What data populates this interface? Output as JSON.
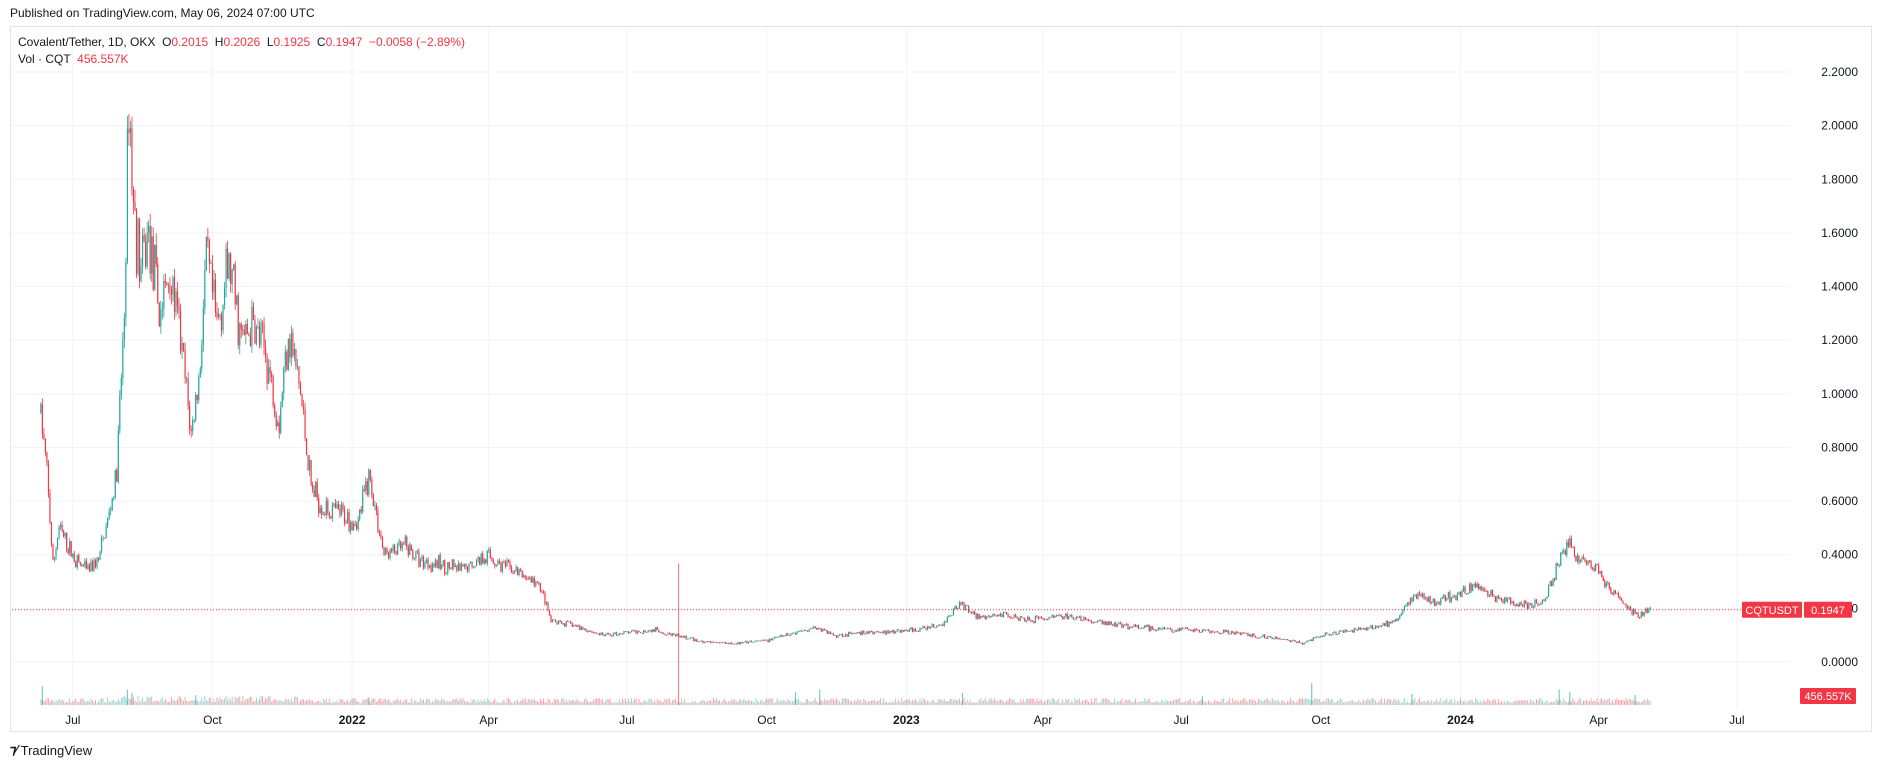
{
  "header": {
    "published": "Published on TradingView.com, May 06, 2024 07:00 UTC"
  },
  "legend": {
    "symbol": "Covalent/Tether, 1D, OKX",
    "open_label": "O",
    "open": "0.2015",
    "high_label": "H",
    "high": "0.2026",
    "low_label": "L",
    "low": "0.1925",
    "close_label": "C",
    "close": "0.1947",
    "change": "−0.0058 (−2.89%)",
    "vol_label": "Vol · CQT",
    "vol_value": "456.557K"
  },
  "footer": {
    "logo_text": "TradingView"
  },
  "colors": {
    "up": "#26a69a",
    "down": "#f23645",
    "grid": "#f0f3fa",
    "axis_text": "#131722"
  },
  "chart_data": {
    "type": "candlestick",
    "symbol_tag": "CQTUSDT",
    "last_price": 0.1947,
    "last_price_label": "0.1947",
    "last_volume_label": "456.557K",
    "y_ticks": [
      "2.2000",
      "2.0000",
      "1.8000",
      "1.6000",
      "1.4000",
      "1.2000",
      "1.0000",
      "0.8000",
      "0.6000",
      "0.4000",
      "0.2000",
      "0.0000"
    ],
    "y_tick_values": [
      2.2,
      2.0,
      1.8,
      1.6,
      1.4,
      1.2,
      1.0,
      0.8,
      0.6,
      0.4,
      0.2,
      0.0
    ],
    "ylim": [
      0,
      2.2
    ],
    "x_ticks": [
      {
        "label": "Jul",
        "date": "2021-07-01",
        "bold": false
      },
      {
        "label": "Oct",
        "date": "2021-10-01",
        "bold": false
      },
      {
        "label": "2022",
        "date": "2022-01-01",
        "bold": true
      },
      {
        "label": "Apr",
        "date": "2022-04-01",
        "bold": false
      },
      {
        "label": "Jul",
        "date": "2022-07-01",
        "bold": false
      },
      {
        "label": "Oct",
        "date": "2022-10-01",
        "bold": false
      },
      {
        "label": "2023",
        "date": "2023-01-01",
        "bold": true
      },
      {
        "label": "Apr",
        "date": "2023-04-01",
        "bold": false
      },
      {
        "label": "Jul",
        "date": "2023-07-01",
        "bold": false
      },
      {
        "label": "Oct",
        "date": "2023-10-01",
        "bold": false
      },
      {
        "label": "2024",
        "date": "2024-01-01",
        "bold": true
      },
      {
        "label": "Apr",
        "date": "2024-04-01",
        "bold": false
      },
      {
        "label": "Jul",
        "date": "2024-07-01",
        "bold": false
      }
    ],
    "x_range": [
      "2021-05-22",
      "2024-08-05"
    ],
    "price_path": [
      {
        "date": "2021-06-10",
        "value": 0.93
      },
      {
        "date": "2021-06-14",
        "value": 0.7
      },
      {
        "date": "2021-06-18",
        "value": 0.36
      },
      {
        "date": "2021-06-22",
        "value": 0.5
      },
      {
        "date": "2021-06-27",
        "value": 0.44
      },
      {
        "date": "2021-07-03",
        "value": 0.38
      },
      {
        "date": "2021-07-10",
        "value": 0.34
      },
      {
        "date": "2021-07-18",
        "value": 0.38
      },
      {
        "date": "2021-07-25",
        "value": 0.55
      },
      {
        "date": "2021-07-30",
        "value": 0.7
      },
      {
        "date": "2021-08-04",
        "value": 1.3
      },
      {
        "date": "2021-08-07",
        "value": 2.12
      },
      {
        "date": "2021-08-10",
        "value": 1.7
      },
      {
        "date": "2021-08-15",
        "value": 1.45
      },
      {
        "date": "2021-08-20",
        "value": 1.6
      },
      {
        "date": "2021-08-27",
        "value": 1.3
      },
      {
        "date": "2021-09-03",
        "value": 1.45
      },
      {
        "date": "2021-09-10",
        "value": 1.2
      },
      {
        "date": "2021-09-17",
        "value": 0.85
      },
      {
        "date": "2021-09-22",
        "value": 1.05
      },
      {
        "date": "2021-09-27",
        "value": 1.5
      },
      {
        "date": "2021-10-04",
        "value": 1.25
      },
      {
        "date": "2021-10-12",
        "value": 1.48
      },
      {
        "date": "2021-10-20",
        "value": 1.2
      },
      {
        "date": "2021-10-28",
        "value": 1.25
      },
      {
        "date": "2021-11-05",
        "value": 1.15
      },
      {
        "date": "2021-11-14",
        "value": 0.9
      },
      {
        "date": "2021-11-20",
        "value": 1.25
      },
      {
        "date": "2021-11-28",
        "value": 1.0
      },
      {
        "date": "2021-12-05",
        "value": 0.65
      },
      {
        "date": "2021-12-14",
        "value": 0.57
      },
      {
        "date": "2021-12-25",
        "value": 0.55
      },
      {
        "date": "2022-01-05",
        "value": 0.52
      },
      {
        "date": "2022-01-12",
        "value": 0.7
      },
      {
        "date": "2022-01-22",
        "value": 0.4
      },
      {
        "date": "2022-02-05",
        "value": 0.43
      },
      {
        "date": "2022-02-15",
        "value": 0.38
      },
      {
        "date": "2022-03-01",
        "value": 0.36
      },
      {
        "date": "2022-03-15",
        "value": 0.34
      },
      {
        "date": "2022-03-30",
        "value": 0.4
      },
      {
        "date": "2022-04-10",
        "value": 0.36
      },
      {
        "date": "2022-04-25",
        "value": 0.32
      },
      {
        "date": "2022-05-05",
        "value": 0.28
      },
      {
        "date": "2022-05-12",
        "value": 0.15
      },
      {
        "date": "2022-05-25",
        "value": 0.14
      },
      {
        "date": "2022-06-15",
        "value": 0.1
      },
      {
        "date": "2022-07-01",
        "value": 0.11
      },
      {
        "date": "2022-07-20",
        "value": 0.12
      },
      {
        "date": "2022-08-01",
        "value": 0.1
      },
      {
        "date": "2022-08-20",
        "value": 0.075
      },
      {
        "date": "2022-09-15",
        "value": 0.07
      },
      {
        "date": "2022-10-01",
        "value": 0.08
      },
      {
        "date": "2022-10-20",
        "value": 0.11
      },
      {
        "date": "2022-11-01",
        "value": 0.13
      },
      {
        "date": "2022-11-15",
        "value": 0.1
      },
      {
        "date": "2022-12-10",
        "value": 0.11
      },
      {
        "date": "2023-01-10",
        "value": 0.12
      },
      {
        "date": "2023-01-25",
        "value": 0.14
      },
      {
        "date": "2023-02-05",
        "value": 0.22
      },
      {
        "date": "2023-02-20",
        "value": 0.16
      },
      {
        "date": "2023-03-05",
        "value": 0.18
      },
      {
        "date": "2023-03-25",
        "value": 0.16
      },
      {
        "date": "2023-04-15",
        "value": 0.17
      },
      {
        "date": "2023-05-05",
        "value": 0.15
      },
      {
        "date": "2023-06-01",
        "value": 0.13
      },
      {
        "date": "2023-07-01",
        "value": 0.12
      },
      {
        "date": "2023-08-01",
        "value": 0.11
      },
      {
        "date": "2023-09-01",
        "value": 0.09
      },
      {
        "date": "2023-09-20",
        "value": 0.07
      },
      {
        "date": "2023-10-01",
        "value": 0.1
      },
      {
        "date": "2023-10-25",
        "value": 0.12
      },
      {
        "date": "2023-11-20",
        "value": 0.15
      },
      {
        "date": "2023-12-01",
        "value": 0.25
      },
      {
        "date": "2023-12-15",
        "value": 0.22
      },
      {
        "date": "2024-01-10",
        "value": 0.28
      },
      {
        "date": "2024-01-25",
        "value": 0.24
      },
      {
        "date": "2024-02-10",
        "value": 0.21
      },
      {
        "date": "2024-02-25",
        "value": 0.22
      },
      {
        "date": "2024-03-05",
        "value": 0.36
      },
      {
        "date": "2024-03-12",
        "value": 0.44
      },
      {
        "date": "2024-03-20",
        "value": 0.38
      },
      {
        "date": "2024-03-30",
        "value": 0.35
      },
      {
        "date": "2024-04-10",
        "value": 0.26
      },
      {
        "date": "2024-04-20",
        "value": 0.2
      },
      {
        "date": "2024-04-28",
        "value": 0.17
      },
      {
        "date": "2024-05-05",
        "value": 0.195
      }
    ],
    "volume_spikes": [
      {
        "date": "2021-06-11",
        "rel": 0.85
      },
      {
        "date": "2021-08-06",
        "rel": 0.7
      },
      {
        "date": "2021-08-09",
        "rel": 0.55
      },
      {
        "date": "2021-09-20",
        "rel": 0.45
      },
      {
        "date": "2022-01-12",
        "rel": 0.35
      },
      {
        "date": "2022-08-04",
        "rel": 4.6
      },
      {
        "date": "2022-10-20",
        "rel": 0.6
      },
      {
        "date": "2022-11-05",
        "rel": 0.7
      },
      {
        "date": "2023-02-07",
        "rel": 0.55
      },
      {
        "date": "2023-07-15",
        "rel": 0.4
      },
      {
        "date": "2023-09-25",
        "rel": 1.0
      },
      {
        "date": "2023-11-30",
        "rel": 0.5
      },
      {
        "date": "2024-03-06",
        "rel": 0.7
      },
      {
        "date": "2024-03-13",
        "rel": 0.6
      },
      {
        "date": "2024-04-25",
        "rel": 0.45
      }
    ]
  }
}
